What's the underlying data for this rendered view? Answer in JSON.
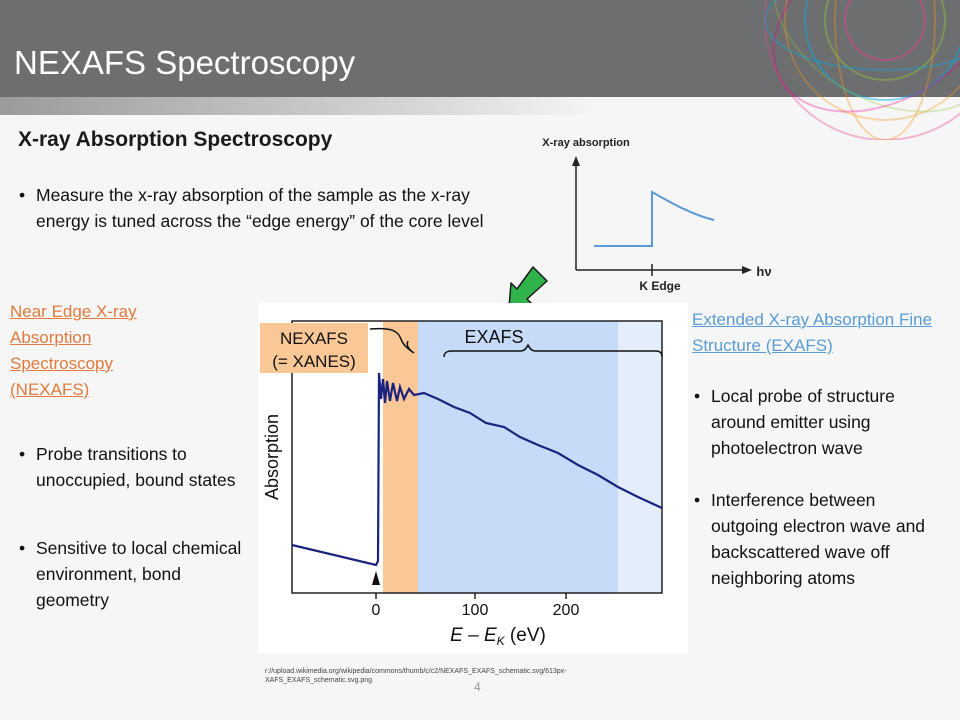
{
  "header": {
    "title": "NEXAFS Spectroscopy"
  },
  "subtitle": "X-ray Absorption Spectroscopy",
  "intro_bullet": "Measure the x-ray absorption of the sample as the x-ray energy is tuned across the “edge energy” of the core level",
  "small_chart": {
    "ylabel": "X-ray absorption",
    "xlabel": "hν",
    "edge_label": "K Edge"
  },
  "left": {
    "link": "Near Edge X-ray Absorption Spectroscopy (NEXAFS)",
    "bullets": [
      "Probe transitions to unoccupied, bound states",
      "Sensitive to local chemical environment, bond geometry"
    ]
  },
  "right": {
    "link": "Extended X-ray Absorption Fine Structure (EXAFS)",
    "bullets": [
      "Local probe of structure around emitter using photoelectron wave",
      "Interference between outgoing electron wave and backscattered wave off neighboring atoms"
    ]
  },
  "chart_data": {
    "type": "line",
    "ylabel": "Absorption",
    "xlabel_main": "E – E",
    "xlabel_sub": "K",
    "xlabel_unit": " (eV)",
    "xticks": [
      0,
      100,
      200
    ],
    "region_labels": {
      "nexafs_line1": "NEXAFS",
      "nexafs_line2": "(= XANES)",
      "exafs": "EXAFS"
    },
    "colors": {
      "nexafs": "#f9c896",
      "exafs": "#c6dbf7",
      "line": "#1a237e"
    }
  },
  "source": "r://upload.wikimedia.org/wikipedia/commons/thumb/c/c2/NEXAFS_EXAFS_schematic.svg/613px-XAFS_EXAFS_schematic.svg.png",
  "page_number": "4",
  "colors": {
    "header": "#6d6e70",
    "link_orange": "#e07a3e",
    "link_blue": "#5b9bd5",
    "arrow": "#2fb34a"
  }
}
